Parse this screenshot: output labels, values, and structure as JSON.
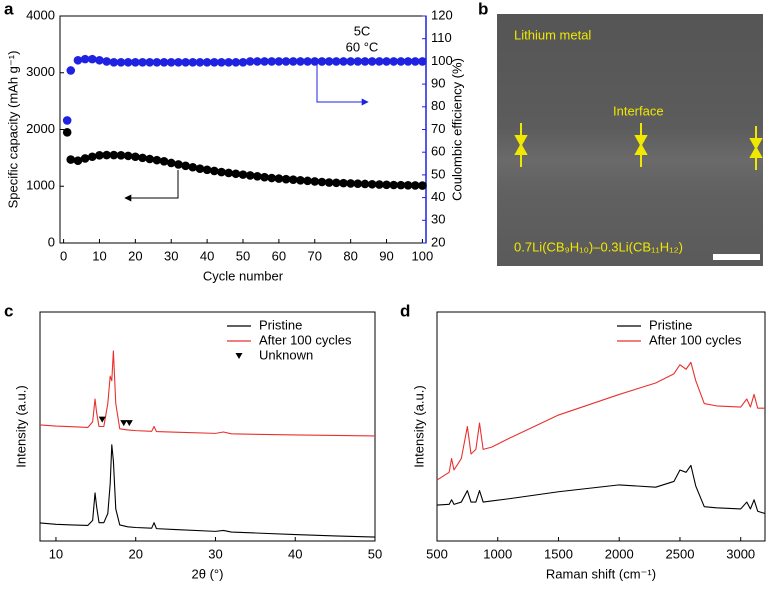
{
  "chart_data": [
    {
      "type": "scatter",
      "panel": "a",
      "xlabel": "Cycle number",
      "ylabel": "Specific capacity (mAh g⁻¹)",
      "y2label": "Coulombic efficiency (%)",
      "annotations": [
        "5C",
        "60 °C"
      ],
      "x": [
        1,
        2,
        4,
        6,
        8,
        10,
        12,
        14,
        16,
        18,
        20,
        22,
        24,
        26,
        28,
        30,
        32,
        34,
        36,
        38,
        40,
        42,
        44,
        46,
        48,
        50,
        52,
        54,
        56,
        58,
        60,
        62,
        64,
        66,
        68,
        70,
        72,
        74,
        76,
        78,
        80,
        82,
        84,
        86,
        88,
        90,
        92,
        94,
        96,
        98,
        100
      ],
      "xlim": [
        -1,
        101
      ],
      "xticks": [
        0,
        10,
        20,
        30,
        40,
        50,
        60,
        70,
        80,
        90,
        100
      ],
      "ylim": [
        0,
        4000
      ],
      "yticks": [
        0,
        1000,
        2000,
        3000,
        4000
      ],
      "y2lim": [
        20,
        120
      ],
      "y2ticks": [
        20,
        30,
        40,
        50,
        60,
        70,
        80,
        90,
        100,
        110,
        120
      ],
      "series": [
        {
          "color": "#000000",
          "values": [
            1950,
            1470,
            1450,
            1490,
            1520,
            1545,
            1550,
            1550,
            1545,
            1535,
            1520,
            1500,
            1480,
            1460,
            1440,
            1410,
            1385,
            1360,
            1335,
            1310,
            1290,
            1270,
            1250,
            1235,
            1220,
            1205,
            1190,
            1175,
            1160,
            1145,
            1135,
            1125,
            1115,
            1105,
            1095,
            1085,
            1075,
            1065,
            1060,
            1055,
            1050,
            1045,
            1040,
            1035,
            1030,
            1025,
            1022,
            1020,
            1017,
            1015,
            1012
          ]
        },
        {
          "color": "#1f22e0",
          "axis": "y2",
          "values": [
            74,
            96,
            100.5,
            101,
            101,
            100.5,
            100,
            99.6,
            99.6,
            99.6,
            99.6,
            99.6,
            99.6,
            99.6,
            99.6,
            99.6,
            99.6,
            99.6,
            99.6,
            99.6,
            99.6,
            99.6,
            99.6,
            99.6,
            99.6,
            99.6,
            100,
            100,
            100,
            100,
            100,
            100,
            100,
            100,
            100,
            100,
            100,
            100,
            100,
            100,
            100,
            100,
            100,
            100,
            100,
            100,
            100,
            100,
            100,
            100,
            100
          ]
        }
      ]
    },
    {
      "type": "line",
      "panel": "c",
      "xlabel": "2θ (°)",
      "ylabel": "Intensity (a.u.)",
      "x": [
        8,
        10,
        12,
        14,
        14.6,
        14.9,
        15.1,
        15.4,
        16,
        16.5,
        16.8,
        17.0,
        17.2,
        17.5,
        18,
        19,
        20,
        22,
        22.3,
        22.6,
        25,
        30,
        31,
        32,
        35,
        40,
        45,
        50
      ],
      "xlim": [
        8,
        50
      ],
      "xticks": [
        10,
        20,
        30,
        40,
        50
      ],
      "ylim": [
        0,
        100
      ],
      "legend": "upper right",
      "series": [
        {
          "name": "Pristine",
          "color": "#000000",
          "values": [
            7.9,
            7.3,
            7.0,
            6.8,
            9,
            21,
            15,
            8,
            8,
            12,
            25,
            42,
            35,
            14,
            7,
            6.2,
            5.9,
            5.6,
            8,
            5.4,
            5.0,
            4.2,
            4.6,
            3.9,
            3.5,
            2.8,
            2.2,
            1.7
          ]
        },
        {
          "name": "After 100 cycles",
          "color": "#e8312f",
          "values": [
            50.7,
            50.2,
            49.9,
            49.6,
            52,
            62,
            56,
            50,
            50,
            60,
            72,
            70,
            83,
            60,
            49,
            48.5,
            48.2,
            47.9,
            50,
            47.8,
            47.5,
            47.0,
            47.6,
            46.8,
            46.6,
            46.3,
            46.1,
            45.9
          ]
        },
        {
          "name": "Unknown",
          "color": "#000000",
          "marker": "triangle-down",
          "x": [
            15.8,
            18.5,
            19.2
          ],
          "values": [
            53,
            51.5,
            51.5
          ]
        }
      ]
    },
    {
      "type": "line",
      "panel": "d",
      "xlabel": "Raman shift (cm⁻¹)",
      "ylabel": "Intensity (a.u.)",
      "x": [
        500,
        600,
        620,
        640,
        700,
        750,
        780,
        820,
        850,
        880,
        950,
        1100,
        1500,
        2000,
        2300,
        2450,
        2500,
        2550,
        2590,
        2630,
        2700,
        2800,
        3000,
        3050,
        3080,
        3110,
        3140,
        3200
      ],
      "xlim": [
        500,
        3200
      ],
      "xticks": [
        500,
        1000,
        1500,
        2000,
        2500,
        3000
      ],
      "ylim": [
        0,
        100
      ],
      "legend": "upper right",
      "series": [
        {
          "name": "Pristine",
          "color": "#000000",
          "values": [
            15.7,
            16,
            18,
            16,
            17,
            22,
            17,
            17,
            22,
            17,
            17.5,
            18.5,
            21.5,
            24.5,
            23.5,
            26,
            31,
            30,
            33,
            24,
            15,
            14.5,
            14,
            17,
            14,
            18,
            13,
            12
          ]
        },
        {
          "name": "After 100 cycles",
          "color": "#e8312f",
          "values": [
            26.6,
            30,
            36,
            31,
            36,
            50,
            38,
            40,
            51.5,
            40,
            41,
            45,
            55,
            64,
            69,
            73,
            77,
            75,
            78,
            70,
            60,
            59,
            58.5,
            62,
            58.5,
            64,
            58,
            58
          ]
        }
      ]
    }
  ],
  "image_panel": {
    "panel": "b",
    "material_top": "Lithium metal",
    "interface": "Interface",
    "material_bottom": "0.7Li(CB₉H₁₀)–0.3Li(CB₁₁H₁₂)"
  }
}
